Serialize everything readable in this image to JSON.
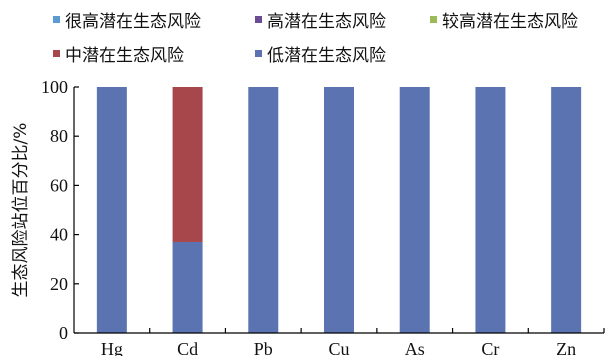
{
  "chart_data": {
    "type": "bar",
    "stacked": true,
    "categories": [
      "Hg",
      "Cd",
      "Pb",
      "Cu",
      "As",
      "Cr",
      "Zn"
    ],
    "series": [
      {
        "name": "很高潜在生态风险",
        "color": "#5b9bd5",
        "values": [
          0,
          0,
          0,
          0,
          0,
          0,
          0
        ]
      },
      {
        "name": "高潜在生态风险",
        "color": "#6a4c93",
        "values": [
          0,
          0,
          0,
          0,
          0,
          0,
          0
        ]
      },
      {
        "name": "较高潜在生态风险",
        "color": "#9bbb59",
        "values": [
          0,
          0,
          0,
          0,
          0,
          0,
          0
        ]
      },
      {
        "name": "中潜在生态风险",
        "color": "#a8474b",
        "values": [
          0,
          63,
          0,
          0,
          0,
          0,
          0
        ]
      },
      {
        "name": "低潜在生态风险",
        "color": "#5b74b1",
        "values": [
          100,
          37,
          100,
          100,
          100,
          100,
          100
        ]
      }
    ],
    "stack_order": [
      "低潜在生态风险",
      "中潜在生态风险",
      "较高潜在生态风险",
      "高潜在生态风险",
      "很高潜在生态风险"
    ],
    "ylabel": "生态风险站位百分比/%",
    "xlabel": "",
    "ylim": [
      0,
      100
    ],
    "yticks": [
      0,
      20,
      40,
      60,
      80,
      100
    ],
    "grid": false,
    "legend_position": "top"
  }
}
